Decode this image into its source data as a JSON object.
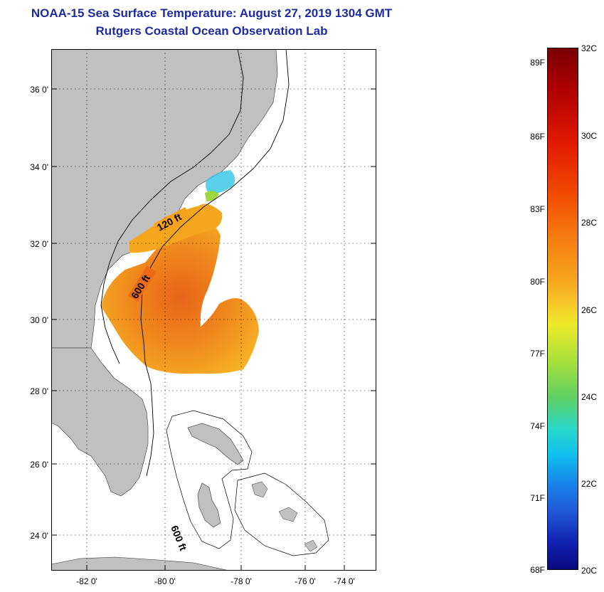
{
  "header": {
    "title": "NOAA-15 Sea Surface Temperature:  August 27, 2019 1304 GMT",
    "subtitle": "Rutgers Coastal Ocean Observation Lab"
  },
  "axes": {
    "y_ticks": [
      "36 0'",
      "34 0'",
      "32 0'",
      "30 0'",
      "28 0'",
      "26 0'",
      "24 0'"
    ],
    "x_ticks": [
      "-82 0'",
      "-80 0'",
      "-78 0'",
      "-76 0'",
      "-74 0'"
    ]
  },
  "contour_labels": {
    "shelf_120": "120 ft",
    "shelf_600": "600 ft",
    "bahamas_600": "600 ft"
  },
  "colorbar": {
    "fahrenheit": [
      "89F",
      "86F",
      "83F",
      "80F",
      "77F",
      "74F",
      "71F",
      "68F"
    ],
    "celsius": [
      "32C",
      "30C",
      "28C",
      "26C",
      "24C",
      "22C",
      "20C"
    ]
  },
  "colors": {
    "land": "#c0c0c0",
    "ocean": "#ffffff",
    "title": "#1d2c9e",
    "sst_warm": "#e85a10",
    "sst_mid": "#f6a21c",
    "sst_cool": "#3ec8e6"
  }
}
